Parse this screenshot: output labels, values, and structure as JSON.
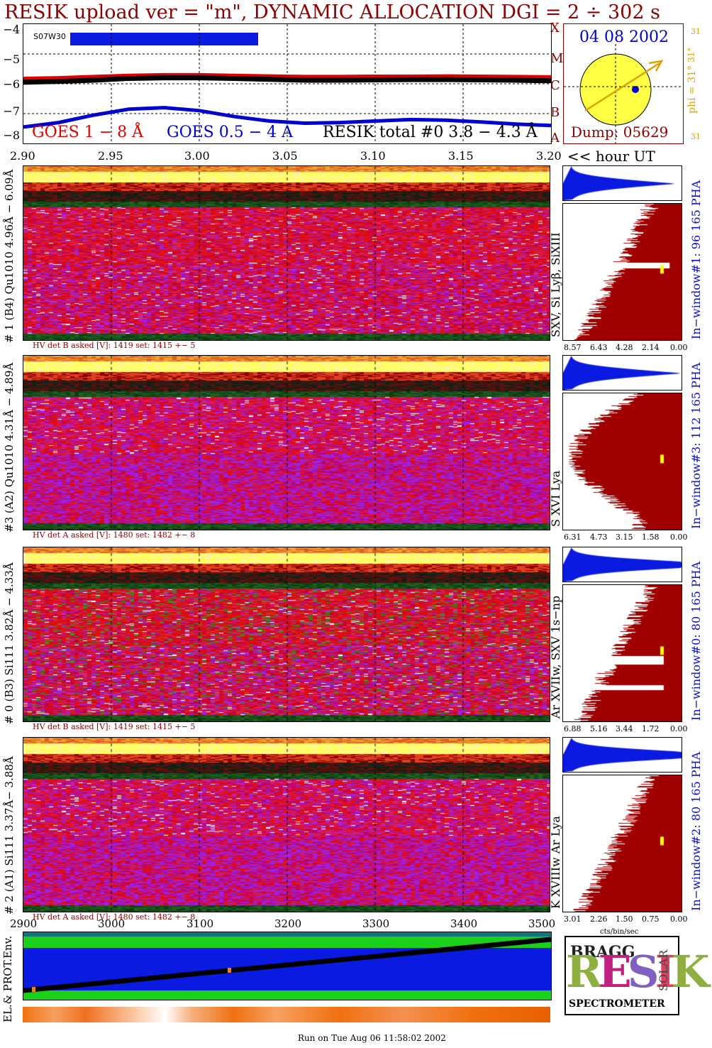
{
  "title": "RESIK upload ver = \"m\", DYNAMIC ALLOCATION  DGI =   2 ÷ 302 s",
  "goes_panel": {
    "y_ticks": [
      "−4",
      "−5",
      "−6",
      "−7",
      "−8"
    ],
    "x_ticks": [
      "2.90",
      "2.95",
      "3.00",
      "3.05",
      "3.10",
      "3.15",
      "3.20"
    ],
    "x_unit_label": "<< hour UT",
    "marker_label": "S07W30",
    "class_letters": [
      "X",
      "M",
      "C",
      "B",
      "A"
    ],
    "legend": {
      "goes_long": "GOES 1 − 8 Å",
      "goes_short": "GOES 0.5 − 4 A",
      "resik": "RESIK total #0  3.8 − 4.3 Å"
    },
    "colors": {
      "goes_long": "#e00000",
      "goes_short": "#0000d0",
      "resik": "#000000"
    }
  },
  "chart_data": {
    "type": "line",
    "x": [
      2.9,
      2.92,
      2.94,
      2.96,
      2.98,
      3.0,
      3.02,
      3.04,
      3.06,
      3.08,
      3.1,
      3.12,
      3.14,
      3.16,
      3.18,
      3.2
    ],
    "ylim": [
      -8,
      -4
    ],
    "xlim": [
      2.9,
      3.2
    ],
    "series": [
      {
        "name": "GOES 1 − 8 Å",
        "color": "#e00000",
        "values": [
          -5.82,
          -5.8,
          -5.76,
          -5.72,
          -5.7,
          -5.7,
          -5.72,
          -5.74,
          -5.76,
          -5.76,
          -5.75,
          -5.75,
          -5.74,
          -5.75,
          -5.76,
          -5.77
        ]
      },
      {
        "name": "GOES 0.5 − 4 A",
        "color": "#0000d0",
        "values": [
          -7.45,
          -7.3,
          -7.05,
          -6.85,
          -6.8,
          -6.9,
          -7.1,
          -7.25,
          -7.32,
          -7.3,
          -7.25,
          -7.2,
          -7.22,
          -7.28,
          -7.35,
          -7.4
        ]
      },
      {
        "name": "RESIK total #0  3.8 − 4.3 Å",
        "color": "#000000",
        "values": [
          -5.95,
          -5.92,
          -5.88,
          -5.82,
          -5.8,
          -5.8,
          -5.82,
          -5.85,
          -5.88,
          -5.88,
          -5.87,
          -5.86,
          -5.86,
          -5.87,
          -5.88,
          -5.9
        ]
      }
    ]
  },
  "sun": {
    "date": "04 08 2002",
    "dump": "Dump: 05629",
    "phi": "phi = 31°",
    "scale_top": "31",
    "scale_mid": "31°",
    "scale_bot": "31"
  },
  "spectrograms": [
    {
      "label": "# 1 (B4) Qu1010 4.96Å − 6.09Å",
      "hv": "HV det B asked [V]:  1419 set:  1415 +−   5",
      "lines": "SXV, Si Lyβ, SiXIII",
      "window": "In−window#1:  96 165 PHA",
      "hist_ticks": [
        "8.57",
        "6.43",
        "4.28",
        "2.14",
        "0.00"
      ]
    },
    {
      "label": "#3 (A2) Qu1010  4.31Å − 4.89Å",
      "hv": "HV det A asked [V]:  1480 set:  1482 +−   8",
      "lines": "S XVI Lya",
      "window": "In−window#3:  112 165 PHA",
      "hist_ticks": [
        "6.31",
        "4.73",
        "3.15",
        "1.58",
        "0.00"
      ]
    },
    {
      "label": "# 0 (B3) Si111  3.82Å − 4.33Å",
      "hv": "HV det B asked [V]:  1419 set:  1415 +−   5",
      "lines": "Ar XVIIw, SXV 1s−np",
      "window": "In−window#0:  80 165 PHA",
      "hist_ticks": [
        "6.88",
        "5.16",
        "3.44",
        "1.72",
        "0.00"
      ]
    },
    {
      "label": "# 2 (A1) Si111  3.37Å− 3.88Å",
      "hv": "HV det A asked [V]:  1480 set:  1482 +−   8",
      "lines": "K XVIIIw  Ar Lya",
      "window": "In−window#2:  80 165 PHA",
      "hist_ticks": [
        "3.01",
        "2.26",
        "1.50",
        "0.75",
        "0.00"
      ]
    }
  ],
  "hist_unit": "cts/bin/sec",
  "env_panel": {
    "label": "EL.& PROT.Env.",
    "x_ticks": [
      "2900",
      "3000",
      "3100",
      "3200",
      "3300",
      "3400",
      "3500"
    ]
  },
  "logo": {
    "bragg": "BRAGG",
    "solar": "SOLAR",
    "resik": "RESIK",
    "spectrometer": "SPECTROMETER"
  },
  "footer": "Run on Tue Aug 06 11:58:02 2002"
}
